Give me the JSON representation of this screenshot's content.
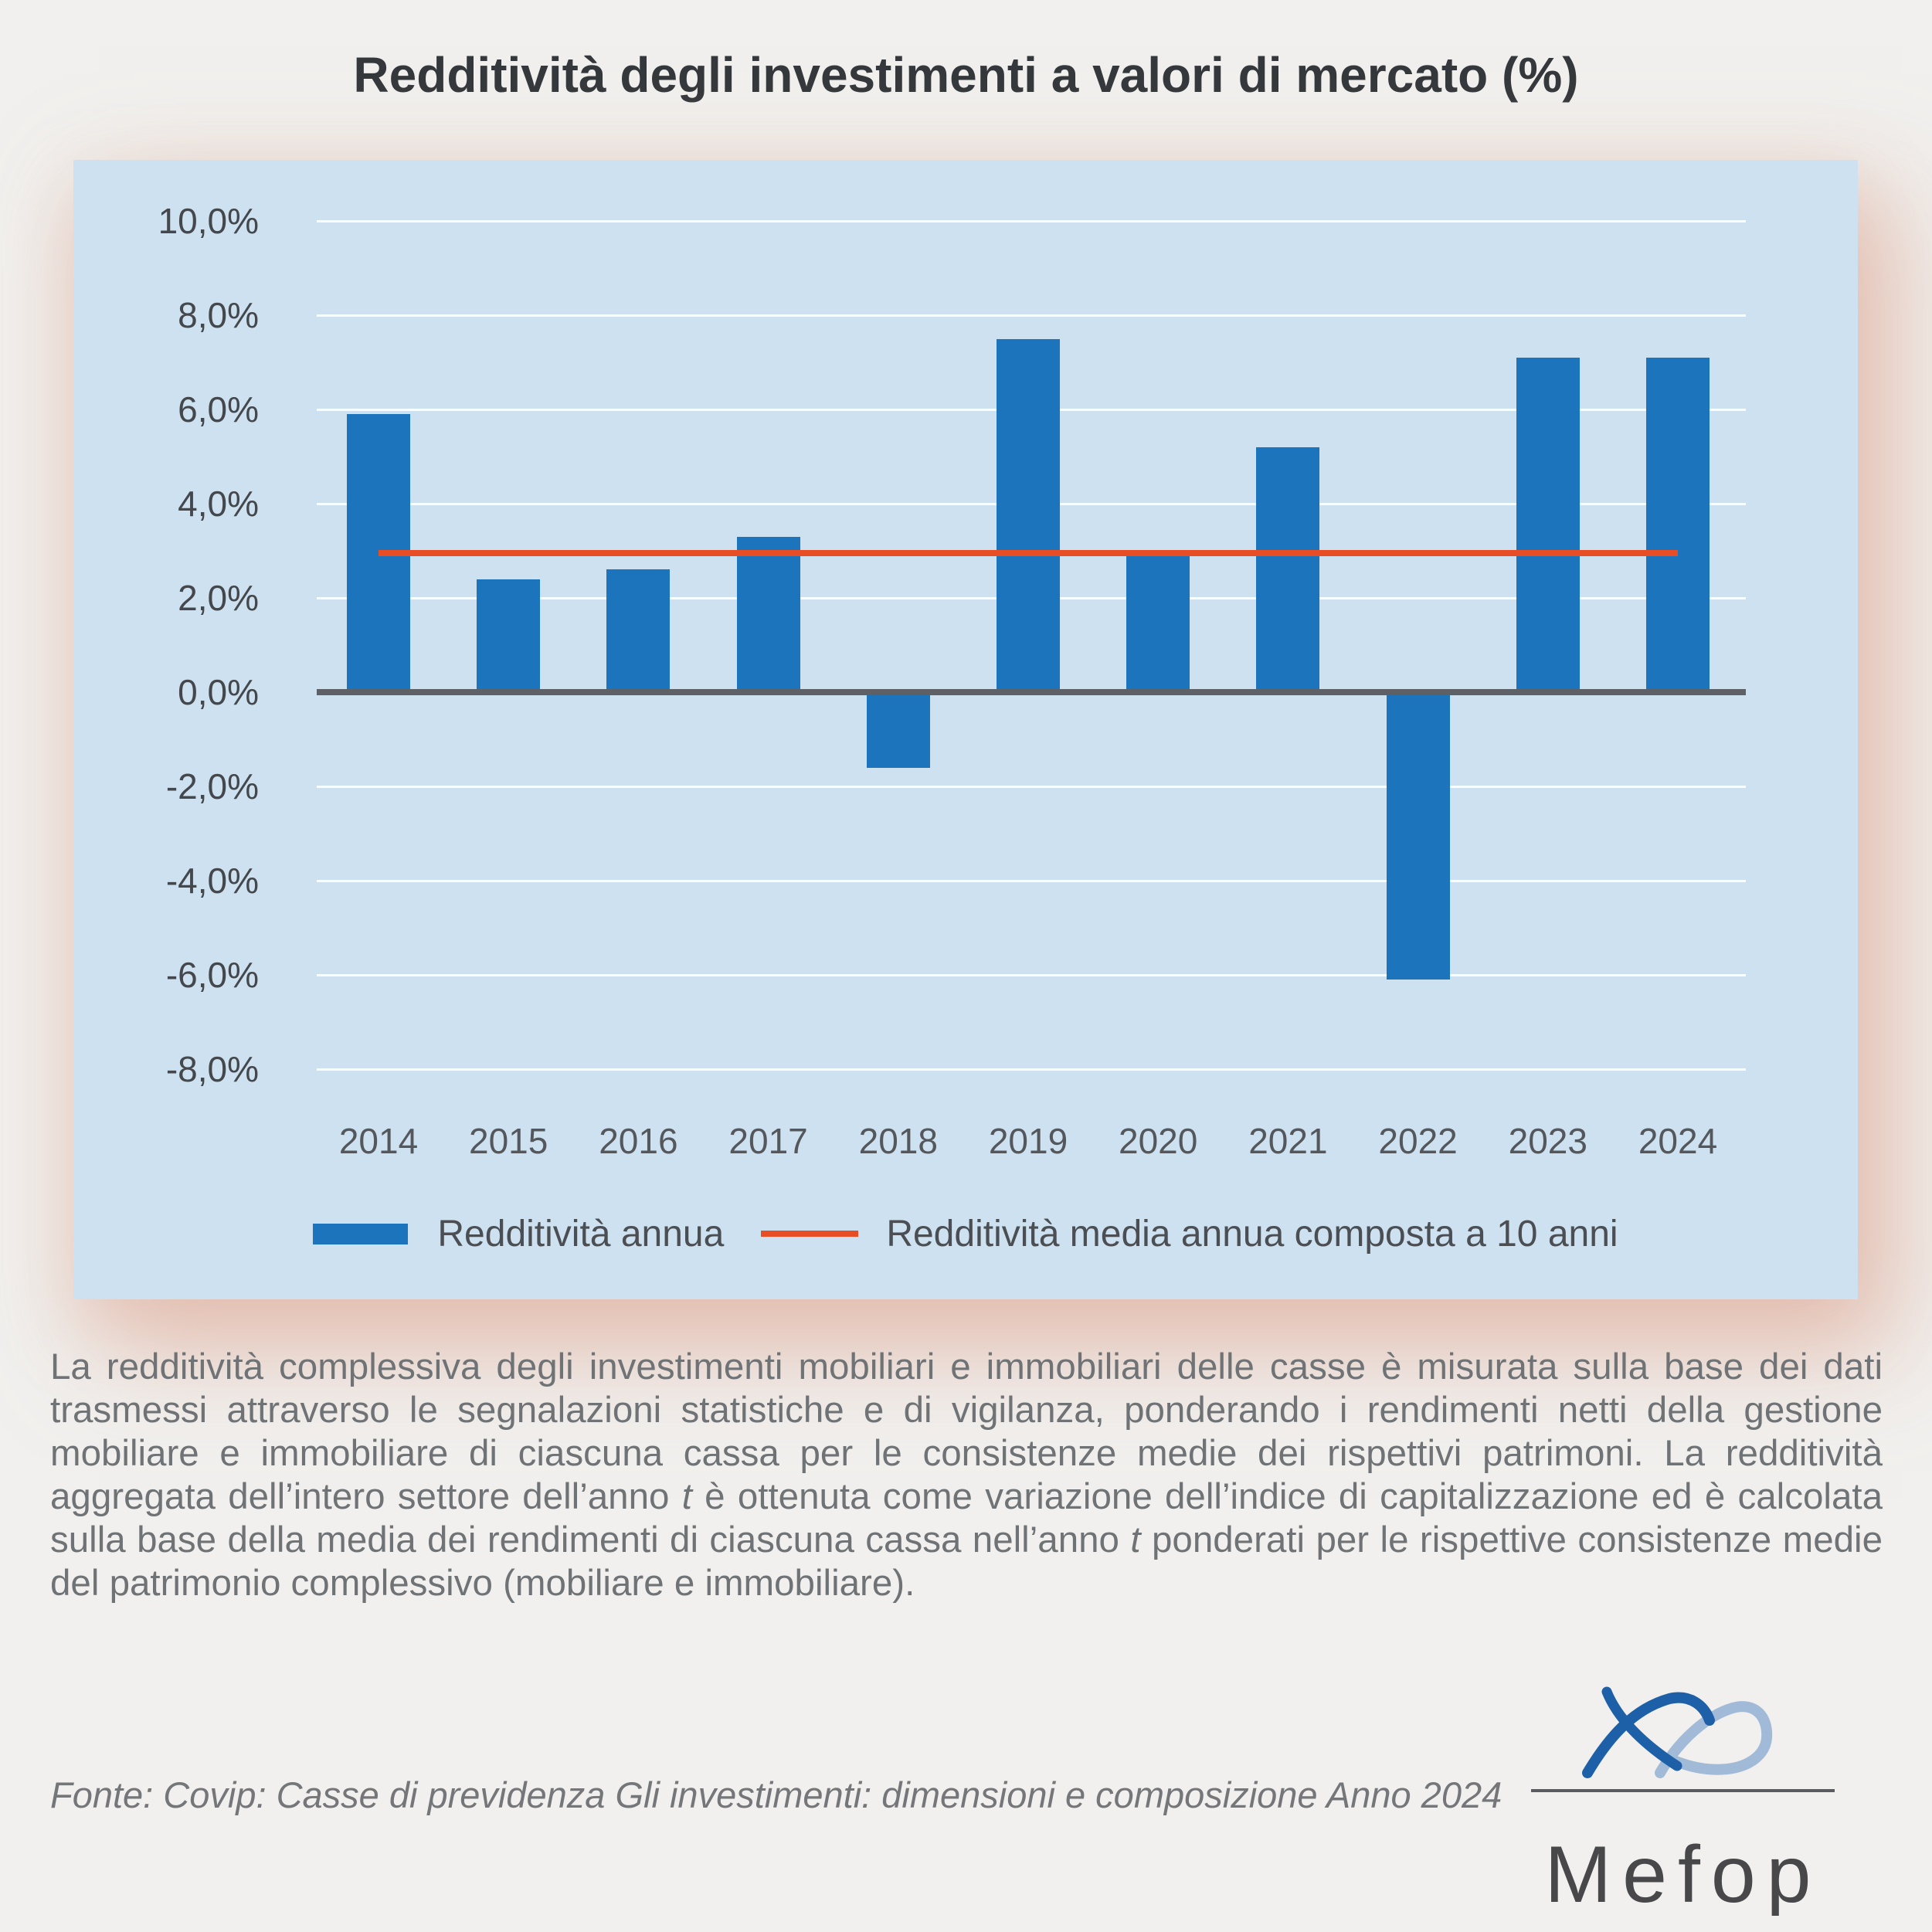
{
  "title": "Redditività degli investimenti a valori di mercato (%)",
  "chart_data": {
    "type": "bar",
    "title": "Redditività degli investimenti a valori di mercato (%)",
    "categories": [
      "2014",
      "2015",
      "2016",
      "2017",
      "2018",
      "2019",
      "2020",
      "2021",
      "2022",
      "2023",
      "2024"
    ],
    "series": [
      {
        "name": "Redditività annua",
        "values": [
          5.9,
          2.4,
          2.6,
          3.3,
          -1.6,
          7.5,
          2.9,
          5.2,
          -6.1,
          7.1,
          7.1
        ]
      }
    ],
    "avg_line": {
      "name": "Redditività media annua composta a 10 anni",
      "value": 2.95
    },
    "xlabel": "",
    "ylabel": "",
    "ylim": [
      -8,
      10
    ],
    "ytick_step": 2,
    "ytick_labels": [
      "10,0%",
      "8,0%",
      "6,0%",
      "4,0%",
      "2,0%",
      "0,0%",
      "-2,0%",
      "-4,0%",
      "-6,0%",
      "-8,0%"
    ],
    "grid": true,
    "legend_position": "bottom",
    "colors": {
      "bar": "#1c75bc",
      "avg_line": "#e84e25",
      "panel_background": "#cde1f0",
      "zero_axis": "#5d6065"
    }
  },
  "legend": {
    "bar_label": "Redditività annua",
    "line_label": "Redditività media annua composta a 10 anni"
  },
  "description": {
    "seg1": "La redditività complessiva degli investimenti mobiliari e immobiliari delle casse è misurata sulla base dei dati trasmessi attraverso le segnalazioni statistiche e di vigilanza, ponderando i rendimenti netti della gestione mobiliare e immobiliare di ciascuna cassa per le consistenze medie dei rispettivi patrimoni. La redditività aggregata dell’intero settore dell’anno ",
    "t1": "t",
    "seg2": " è ottenuta come variazione dell’indice di capitalizzazione ed è calcolata sulla base della media dei rendimenti di ciascuna cassa nell’anno ",
    "t2": "t",
    "seg3": " ponderati per le rispettive consistenze medie del patrimonio complessivo (mobiliare e immobiliare)."
  },
  "source": "Fonte: Covip: Casse di previdenza Gli investimenti: dimensioni e composizione Anno 2024",
  "logo": {
    "text": "Mefop"
  }
}
